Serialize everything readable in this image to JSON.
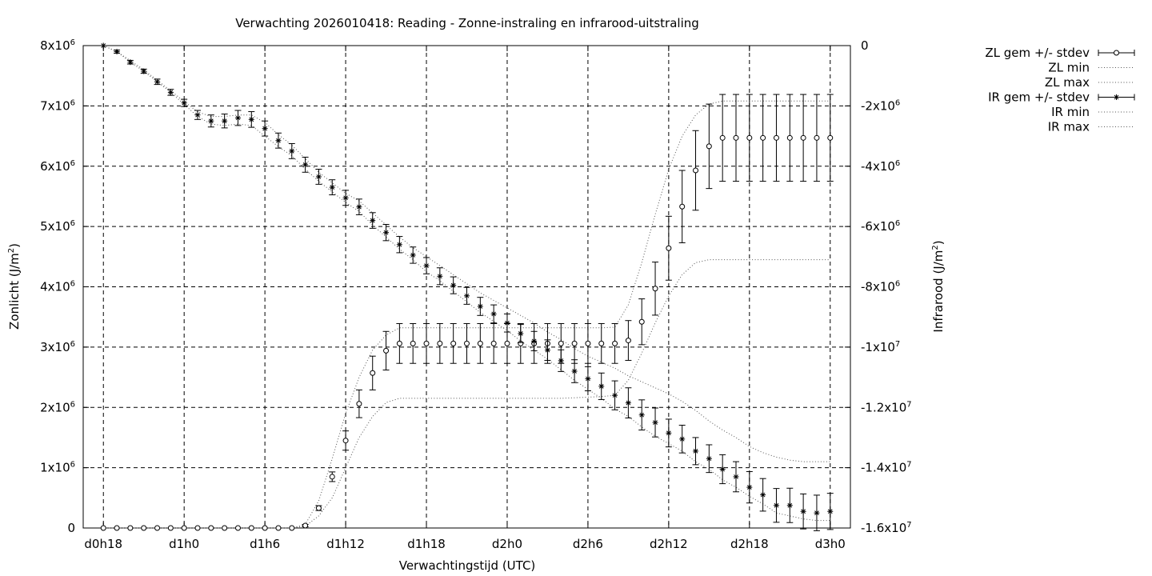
{
  "chart_data": {
    "type": "line",
    "title": "Verwachting 2026010418: Reading - Zonne-instraling en infrarood-uitstraling",
    "xlabel": "Verwachtingstijd (UTC)",
    "ylabel_left": {
      "base": "Zonlicht (J/m",
      "sup": "2",
      "tail": ")"
    },
    "ylabel_right": {
      "base": "Infrarood (J/m",
      "sup": "2",
      "tail": ")"
    },
    "x_unit": "forecast hours",
    "xlim": [
      -1.5,
      55.5
    ],
    "xticks": [
      {
        "x": 0,
        "label": "d0h18"
      },
      {
        "x": 6,
        "label": "d1h0"
      },
      {
        "x": 12,
        "label": "d1h6"
      },
      {
        "x": 18,
        "label": "d1h12"
      },
      {
        "x": 24,
        "label": "d1h18"
      },
      {
        "x": 30,
        "label": "d2h0"
      },
      {
        "x": 36,
        "label": "d2h6"
      },
      {
        "x": 42,
        "label": "d2h12"
      },
      {
        "x": 48,
        "label": "d2h18"
      },
      {
        "x": 54,
        "label": "d3h0"
      }
    ],
    "ylim_left": [
      0,
      8000000
    ],
    "yticks_left": [
      {
        "y": 0,
        "base": "0",
        "sup": ""
      },
      {
        "y": 1000000,
        "base": "1x10",
        "sup": "6"
      },
      {
        "y": 2000000,
        "base": "2x10",
        "sup": "6"
      },
      {
        "y": 3000000,
        "base": "3x10",
        "sup": "6"
      },
      {
        "y": 4000000,
        "base": "4x10",
        "sup": "6"
      },
      {
        "y": 5000000,
        "base": "5x10",
        "sup": "6"
      },
      {
        "y": 6000000,
        "base": "6x10",
        "sup": "6"
      },
      {
        "y": 7000000,
        "base": "7x10",
        "sup": "6"
      },
      {
        "y": 8000000,
        "base": "8x10",
        "sup": "6"
      }
    ],
    "ylim_right": [
      -16000000,
      0
    ],
    "yticks_right": [
      {
        "y": 0,
        "base": "0",
        "sup": ""
      },
      {
        "y": -2000000,
        "base": "-2x10",
        "sup": "6"
      },
      {
        "y": -4000000,
        "base": "-4x10",
        "sup": "6"
      },
      {
        "y": -6000000,
        "base": "-6x10",
        "sup": "6"
      },
      {
        "y": -8000000,
        "base": "-8x10",
        "sup": "6"
      },
      {
        "y": -10000000,
        "base": "-1x10",
        "sup": "7"
      },
      {
        "y": -12000000,
        "base": "-1.2x10",
        "sup": "7"
      },
      {
        "y": -14000000,
        "base": "-1.4x10",
        "sup": "7"
      },
      {
        "y": -16000000,
        "base": "-1.6x10",
        "sup": "7"
      }
    ],
    "grid": true,
    "legend_position": "top-right, outside plot",
    "x": [
      0,
      1,
      2,
      3,
      4,
      5,
      6,
      7,
      8,
      9,
      10,
      11,
      12,
      13,
      14,
      15,
      16,
      17,
      18,
      19,
      20,
      21,
      22,
      23,
      24,
      25,
      26,
      27,
      28,
      29,
      30,
      31,
      32,
      33,
      34,
      35,
      36,
      37,
      38,
      39,
      40,
      41,
      42,
      43,
      44,
      45,
      46,
      47,
      48,
      49,
      50,
      51,
      52,
      53,
      54
    ],
    "series": [
      {
        "name": "ZL gem +/- stdev",
        "axis": "left",
        "marker": "circle",
        "values": [
          0,
          0,
          0,
          0,
          0,
          0,
          0,
          0,
          0,
          0,
          0,
          0,
          0,
          0,
          0,
          40000,
          330000,
          850000,
          1450000,
          2060000,
          2570000,
          2940000,
          3060000,
          3060000,
          3060000,
          3060000,
          3060000,
          3060000,
          3060000,
          3060000,
          3060000,
          3060000,
          3060000,
          3060000,
          3060000,
          3060000,
          3060000,
          3060000,
          3060000,
          3110000,
          3420000,
          3970000,
          4640000,
          5330000,
          5930000,
          6330000,
          6470000,
          6470000,
          6470000,
          6470000,
          6470000,
          6470000,
          6470000,
          6470000,
          6470000
        ],
        "stdev": [
          0,
          0,
          0,
          0,
          0,
          0,
          0,
          0,
          0,
          0,
          0,
          0,
          0,
          0,
          0,
          20000,
          40000,
          80000,
          160000,
          230000,
          280000,
          320000,
          330000,
          330000,
          330000,
          330000,
          330000,
          330000,
          330000,
          330000,
          330000,
          330000,
          330000,
          330000,
          330000,
          330000,
          330000,
          330000,
          330000,
          330000,
          380000,
          440000,
          530000,
          600000,
          660000,
          700000,
          720000,
          720000,
          720000,
          720000,
          720000,
          720000,
          720000,
          720000,
          720000
        ]
      },
      {
        "name": "ZL min",
        "axis": "left",
        "style": "dotted",
        "values": [
          0,
          0,
          0,
          0,
          0,
          0,
          0,
          0,
          0,
          0,
          0,
          0,
          0,
          0,
          0,
          30000,
          200000,
          500000,
          1000000,
          1500000,
          1850000,
          2080000,
          2150000,
          2150000,
          2150000,
          2150000,
          2150000,
          2150000,
          2150000,
          2150000,
          2150000,
          2150000,
          2150000,
          2150000,
          2150000,
          2160000,
          2170000,
          2180000,
          2200000,
          2450000,
          2900000,
          3400000,
          3850000,
          4200000,
          4400000,
          4450000,
          4450000,
          4450000,
          4450000,
          4450000,
          4450000,
          4450000,
          4450000,
          4450000,
          4450000
        ]
      },
      {
        "name": "ZL max",
        "axis": "left",
        "style": "dotted",
        "values": [
          0,
          0,
          0,
          0,
          0,
          0,
          0,
          0,
          0,
          0,
          0,
          0,
          0,
          0,
          0,
          60000,
          450000,
          1150000,
          1900000,
          2500000,
          2950000,
          3200000,
          3320000,
          3320000,
          3320000,
          3320000,
          3320000,
          3320000,
          3320000,
          3320000,
          3320000,
          3320000,
          3320000,
          3320000,
          3320000,
          3320000,
          3320000,
          3320000,
          3330000,
          3700000,
          4400000,
          5200000,
          5950000,
          6500000,
          6850000,
          7030000,
          7080000,
          7080000,
          7080000,
          7080000,
          7080000,
          7080000,
          7080000,
          7080000,
          7080000
        ]
      },
      {
        "name": "IR gem +/- stdev",
        "axis": "right",
        "marker": "star",
        "values": [
          0,
          -200000,
          -550000,
          -850000,
          -1200000,
          -1550000,
          -1900000,
          -2300000,
          -2500000,
          -2500000,
          -2400000,
          -2450000,
          -2750000,
          -3150000,
          -3500000,
          -3950000,
          -4350000,
          -4700000,
          -5050000,
          -5350000,
          -5800000,
          -6200000,
          -6600000,
          -6950000,
          -7300000,
          -7650000,
          -7950000,
          -8300000,
          -8650000,
          -8900000,
          -9200000,
          -9550000,
          -9800000,
          -10100000,
          -10450000,
          -10800000,
          -11050000,
          -11300000,
          -11600000,
          -11850000,
          -12250000,
          -12500000,
          -12850000,
          -13050000,
          -13450000,
          -13700000,
          -14050000,
          -14300000,
          -14650000,
          -14900000,
          -15250000,
          -15250000,
          -15450000,
          -15500000,
          -15450000
        ],
        "stdev": [
          0,
          50000,
          60000,
          70000,
          90000,
          100000,
          120000,
          150000,
          200000,
          230000,
          250000,
          260000,
          250000,
          250000,
          250000,
          250000,
          250000,
          250000,
          250000,
          260000,
          260000,
          270000,
          270000,
          270000,
          270000,
          280000,
          280000,
          280000,
          300000,
          300000,
          300000,
          300000,
          320000,
          340000,
          360000,
          380000,
          400000,
          440000,
          480000,
          500000,
          500000,
          480000,
          460000,
          460000,
          450000,
          460000,
          480000,
          500000,
          520000,
          540000,
          560000,
          570000,
          580000,
          590000,
          600000
        ]
      },
      {
        "name": "IR min",
        "axis": "right",
        "style": "dotted",
        "values": [
          0,
          -200000,
          -550000,
          -850000,
          -1200000,
          -1550000,
          -1950000,
          -2350000,
          -2600000,
          -2650000,
          -2600000,
          -2650000,
          -3000000,
          -3350000,
          -3650000,
          -4100000,
          -4500000,
          -4850000,
          -5200000,
          -5500000,
          -5950000,
          -6350000,
          -6750000,
          -7100000,
          -7500000,
          -7800000,
          -8150000,
          -8500000,
          -8850000,
          -9150000,
          -9450000,
          -9800000,
          -10100000,
          -10400000,
          -10750000,
          -11100000,
          -11400000,
          -11700000,
          -12050000,
          -12300000,
          -12650000,
          -12950000,
          -13200000,
          -13450000,
          -13800000,
          -14050000,
          -14400000,
          -14650000,
          -14950000,
          -15200000,
          -15500000,
          -15600000,
          -15700000,
          -15750000,
          -15750000
        ]
      },
      {
        "name": "IR max",
        "axis": "right",
        "style": "dotted",
        "values": [
          0,
          -200000,
          -500000,
          -800000,
          -1150000,
          -1500000,
          -1850000,
          -2200000,
          -2350000,
          -2350000,
          -2300000,
          -2300000,
          -2550000,
          -2950000,
          -3300000,
          -3750000,
          -4200000,
          -4550000,
          -4900000,
          -5150000,
          -5550000,
          -5950000,
          -6350000,
          -6700000,
          -7000000,
          -7300000,
          -7600000,
          -7900000,
          -8200000,
          -8450000,
          -8700000,
          -8950000,
          -9200000,
          -9500000,
          -9750000,
          -10050000,
          -10300000,
          -10500000,
          -10700000,
          -10950000,
          -11150000,
          -11350000,
          -11550000,
          -11800000,
          -12100000,
          -12450000,
          -12750000,
          -13000000,
          -13300000,
          -13500000,
          -13650000,
          -13750000,
          -13800000,
          -13800000,
          -13800000
        ]
      }
    ]
  }
}
